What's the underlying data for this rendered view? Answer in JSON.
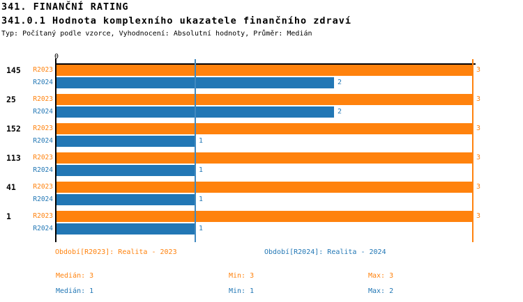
{
  "header": {
    "title": "341. FINANČNÍ RATING",
    "subtitle": "341.0.1 Hodnota komplexního ukazatele finančního zdraví",
    "meta": "Typ: Počítaný podle vzorce, Vyhodnocení: Absolutní hodnoty, Průměr: Medián"
  },
  "colors": {
    "r2023": "#FF820D",
    "r2024": "#2277B5",
    "r2024_median_line": "#4089C0",
    "axis": "#000000"
  },
  "chart_data": {
    "type": "bar",
    "orientation": "horizontal",
    "categories": [
      "145",
      "25",
      "152",
      "113",
      "41",
      "1"
    ],
    "series": [
      {
        "name": "R2023",
        "label": "R2023",
        "color": "#FF820D",
        "values": [
          3,
          3,
          3,
          3,
          3,
          3
        ]
      },
      {
        "name": "R2024",
        "label": "R2024",
        "color": "#2277B5",
        "values": [
          2,
          2,
          1,
          1,
          1,
          1
        ]
      }
    ],
    "xlim": [
      0,
      3
    ],
    "x_tick_labels": [
      "0"
    ],
    "bar_value_labels": true,
    "grid": false,
    "median_lines": [
      {
        "series": "R2023",
        "value": 3,
        "color": "#FF820D"
      },
      {
        "series": "R2024",
        "value": 1,
        "color": "#4089C0"
      }
    ],
    "legend_position": "bottom"
  },
  "legend": [
    {
      "text": "Období[R2023]: Realita - 2023",
      "color": "#FF820D"
    },
    {
      "text": "Období[R2024]: Realita - 2024",
      "color": "#2277B5"
    }
  ],
  "stats_rows": [
    {
      "series": "R2023",
      "items": [
        "Medián: 3",
        "Min: 3",
        "Max: 3"
      ]
    },
    {
      "series": "R2024",
      "items": [
        "Medián: 1",
        "Min: 1",
        "Max: 2"
      ]
    }
  ]
}
